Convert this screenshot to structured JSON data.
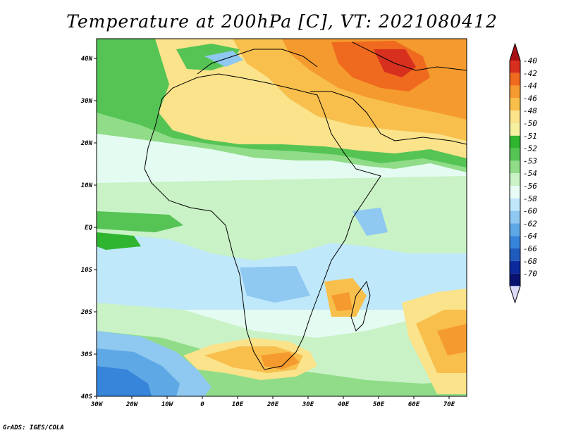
{
  "title": "Temperature at 200hPa [C], VT: 2021080412",
  "credit": "GrADS: IGES/COLA",
  "map": {
    "lon_labels": [
      "30W",
      "20W",
      "10W",
      "0",
      "10E",
      "20E",
      "30E",
      "40E",
      "50E",
      "60E",
      "70E"
    ],
    "lat_labels": [
      "40N",
      "30N",
      "20N",
      "10N",
      "EQ",
      "10S",
      "20S",
      "30S",
      "40S"
    ]
  },
  "colorbar": {
    "labels": [
      "-40",
      "-42",
      "-44",
      "-46",
      "-48",
      "-50",
      "-51",
      "-52",
      "-53",
      "-54",
      "-56",
      "-58",
      "-60",
      "-62",
      "-64",
      "-66",
      "-68",
      "-70"
    ],
    "colors": [
      "#a50f15",
      "#d7301f",
      "#ef6a1e",
      "#f59a2e",
      "#f8bf4d",
      "#fae38a",
      "#f5f0a0",
      "#2fb52f",
      "#55c455",
      "#90dc88",
      "#c9f2c6",
      "#e8fbf4",
      "#bfe8fb",
      "#8fc8f0",
      "#5ea8e6",
      "#3784db",
      "#1f5bbd",
      "#0c2a9e",
      "#0a1470",
      "#dcdcfa"
    ]
  }
}
